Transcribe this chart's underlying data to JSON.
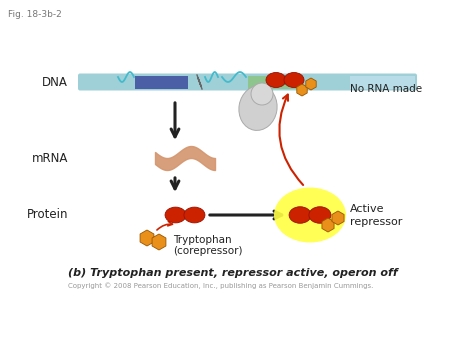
{
  "fig_label": "Fig. 18-3b-2",
  "title": "(b) Tryptophan present, repressor active, operon off",
  "copyright": "Copyright © 2008 Pearson Education, Inc., publishing as Pearson Benjamin Cummings.",
  "bg_color": "#ffffff",
  "dna_strand_color": "#9fd0d8",
  "dna_promoter_color": "#4a5fa5",
  "dna_operator_color": "#8ec48e",
  "dna_right_color": "#b8dce8",
  "repressor_color": "#cc2200",
  "repressor_edge": "#991100",
  "corepressor_color": "#e8901a",
  "corepressor_edge": "#995500",
  "mrna_color": "#d4956e",
  "arrow_color": "#222222",
  "red_arrow_color": "#cc2200",
  "glow_color": "#ffff44",
  "blob_color": "#cccccc",
  "text_color": "#222222",
  "fig_label_color": "#777777"
}
